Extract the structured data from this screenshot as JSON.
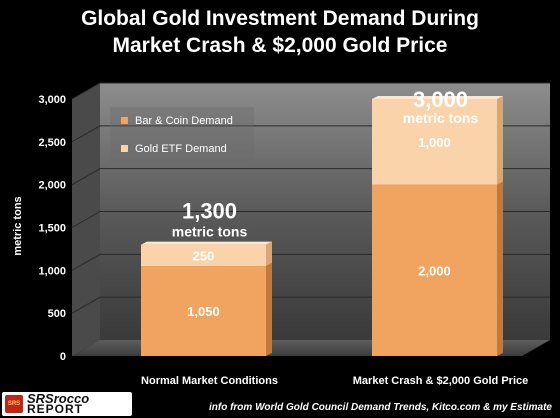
{
  "chart_data": {
    "type": "bar",
    "stacked": true,
    "title": "Global Gold Investment Demand During Market Crash & $2,000 Gold Price",
    "ylabel": "metric tons",
    "ylim": [
      0,
      3000
    ],
    "yticks": [
      0,
      500,
      1000,
      1500,
      2000,
      2500,
      3000
    ],
    "ytick_labels": [
      "0",
      "500",
      "1,000",
      "1,500",
      "2,000",
      "2,500",
      "3,000"
    ],
    "categories": [
      "Normal Market Conditions",
      "Market Crash & $2,000 Gold Price"
    ],
    "series": [
      {
        "name": "Bar & Coin Demand",
        "values": [
          1050,
          2000
        ],
        "labels": [
          "1,050",
          "2,000"
        ],
        "color": "#f0a460"
      },
      {
        "name": "Gold ETF Demand",
        "values": [
          250,
          1000
        ],
        "labels": [
          "250",
          "1,000"
        ],
        "color": "#fbd3ab"
      }
    ],
    "totals": [
      {
        "value": "1,300",
        "unit": "metric tons"
      },
      {
        "value": "3,000",
        "unit": "metric tons"
      }
    ],
    "legend_position": "top-left",
    "grid": true
  },
  "logo": {
    "mark": "SRS",
    "line1": "SRSrocco",
    "line2": "REPORT"
  },
  "source": "info from World Gold Council Demand Trends, Kitco.com & my Estimate"
}
